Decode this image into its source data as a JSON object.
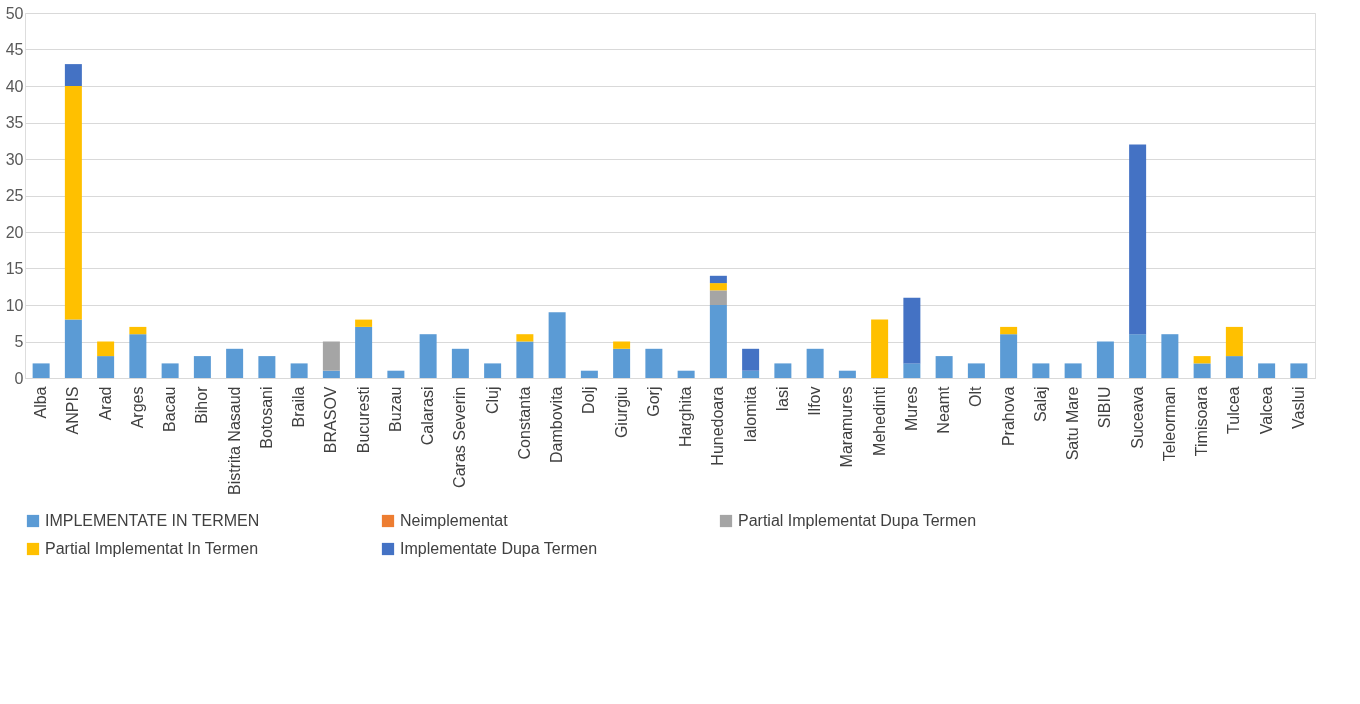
{
  "chart_data": {
    "type": "bar",
    "stacked": true,
    "categories": [
      "Alba",
      "ANPIS",
      "Arad",
      "Arges",
      "Bacau",
      "Bihor",
      "Bistrita Nasaud",
      "Botosani",
      "Braila",
      "BRASOV",
      "Bucuresti",
      "Buzau",
      "Calarasi",
      "Caras Severin",
      "Cluj",
      "Constanta",
      "Dambovita",
      "Dolj",
      "Giurgiu",
      "Gorj",
      "Harghita",
      "Hunedoara",
      "Ialomita",
      "Iasi",
      "Ilfov",
      "Maramures",
      "Mehedinti",
      "Mures",
      "Neamt",
      "Olt",
      "Prahova",
      "Salaj",
      "Satu Mare",
      "SIBIU",
      "Suceava",
      "Teleorman",
      "Timisoara",
      "Tulcea",
      "Valcea",
      "Vaslui"
    ],
    "series": [
      {
        "name": "IMPLEMENTATE IN TERMEN",
        "color": "#5b9bd5",
        "values": [
          2,
          8,
          3,
          6,
          2,
          3,
          4,
          3,
          2,
          1,
          7,
          1,
          6,
          4,
          2,
          5,
          9,
          1,
          4,
          4,
          1,
          10,
          1,
          2,
          4,
          1,
          0,
          2,
          3,
          2,
          6,
          2,
          2,
          5,
          6,
          6,
          2,
          3,
          2,
          2
        ]
      },
      {
        "name": "Neimplementat",
        "color": "#ed7d31",
        "values": [
          0,
          0,
          0,
          0,
          0,
          0,
          0,
          0,
          0,
          0,
          0,
          0,
          0,
          0,
          0,
          0,
          0,
          0,
          0,
          0,
          0,
          0,
          0,
          0,
          0,
          0,
          0,
          0,
          0,
          0,
          0,
          0,
          0,
          0,
          0,
          0,
          0,
          0,
          0,
          0
        ]
      },
      {
        "name": "Partial Implementat Dupa Termen",
        "color": "#a5a5a5",
        "values": [
          0,
          0,
          0,
          0,
          0,
          0,
          0,
          0,
          0,
          4,
          0,
          0,
          0,
          0,
          0,
          0,
          0,
          0,
          0,
          0,
          0,
          2,
          0,
          0,
          0,
          0,
          0,
          0,
          0,
          0,
          0,
          0,
          0,
          0,
          0,
          0,
          0,
          0,
          0,
          0
        ]
      },
      {
        "name": "Partial Implementat In Termen",
        "color": "#ffc000",
        "values": [
          0,
          32,
          2,
          1,
          0,
          0,
          0,
          0,
          0,
          0,
          1,
          0,
          0,
          0,
          0,
          1,
          0,
          0,
          1,
          0,
          0,
          1,
          0,
          0,
          0,
          0,
          8,
          0,
          0,
          0,
          1,
          0,
          0,
          0,
          0,
          0,
          1,
          4,
          0,
          0
        ]
      },
      {
        "name": "Implementate Dupa Termen",
        "color": "#4472c4",
        "values": [
          0,
          3,
          0,
          0,
          0,
          0,
          0,
          0,
          0,
          0,
          0,
          0,
          0,
          0,
          0,
          0,
          0,
          0,
          0,
          0,
          0,
          1,
          3,
          0,
          0,
          0,
          0,
          9,
          0,
          0,
          0,
          0,
          0,
          0,
          26,
          0,
          0,
          0,
          0,
          0
        ]
      }
    ],
    "ylim": [
      0,
      50
    ],
    "yticks": [
      0,
      5,
      10,
      15,
      20,
      25,
      30,
      35,
      40,
      45,
      50
    ],
    "grid": "y",
    "legend": "bottom"
  }
}
